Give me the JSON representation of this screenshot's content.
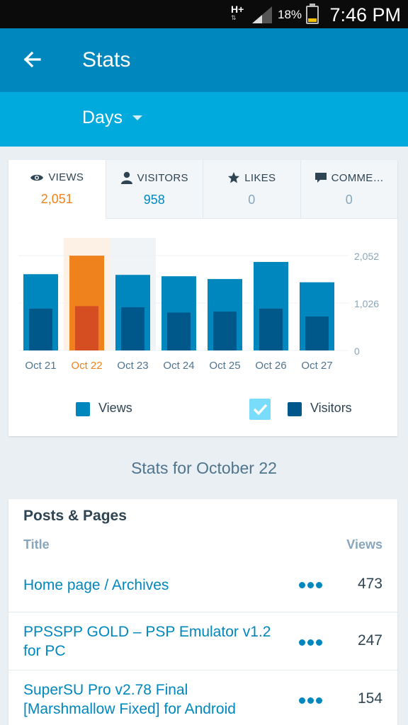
{
  "status_bar": {
    "network": "H+",
    "battery_percent": "18%",
    "time": "7:46 PM"
  },
  "app_bar": {
    "title": "Stats"
  },
  "filter": {
    "period": "Days"
  },
  "tabs": [
    {
      "label": "VIEWS",
      "value": "2,051",
      "icon": "eye-icon"
    },
    {
      "label": "VISITORS",
      "value": "958",
      "icon": "person-icon"
    },
    {
      "label": "LIKES",
      "value": "0",
      "icon": "star-icon"
    },
    {
      "label": "COMME…",
      "value": "0",
      "icon": "comment-icon"
    }
  ],
  "colors": {
    "views": "#0087be",
    "visitors": "#00578a",
    "selected_views": "#f0821e",
    "selected_visitors": "#d54e21",
    "accent": "#00aadc"
  },
  "chart_data": {
    "type": "bar",
    "categories": [
      "Oct 21",
      "Oct 22",
      "Oct 23",
      "Oct 24",
      "Oct 25",
      "Oct 26",
      "Oct 27"
    ],
    "series": [
      {
        "name": "Views",
        "values": [
          1650,
          2051,
          1635,
          1605,
          1545,
          1915,
          1475
        ]
      },
      {
        "name": "Visitors",
        "values": [
          905,
          958,
          935,
          820,
          840,
          905,
          735
        ]
      }
    ],
    "y_ticks": [
      "2,052",
      "1,026",
      "0"
    ],
    "ylim": [
      0,
      2052
    ],
    "selected_index": 1,
    "highlighted_index": 2,
    "grid": true,
    "legend_position": "bottom"
  },
  "legend": {
    "views": "Views",
    "visitors": "Visitors"
  },
  "stats_for": "Stats for October 22",
  "posts": {
    "title": "Posts & Pages",
    "col_title": "Title",
    "col_views": "Views",
    "rows": [
      {
        "title": "Home page / Archives",
        "views": "473"
      },
      {
        "title": "PPSSPP GOLD – PSP Emulator v1.2 for PC",
        "views": "247"
      },
      {
        "title": "SuperSU Pro v2.78 Final [Marshmallow Fixed] for Android",
        "views": "154"
      }
    ]
  }
}
